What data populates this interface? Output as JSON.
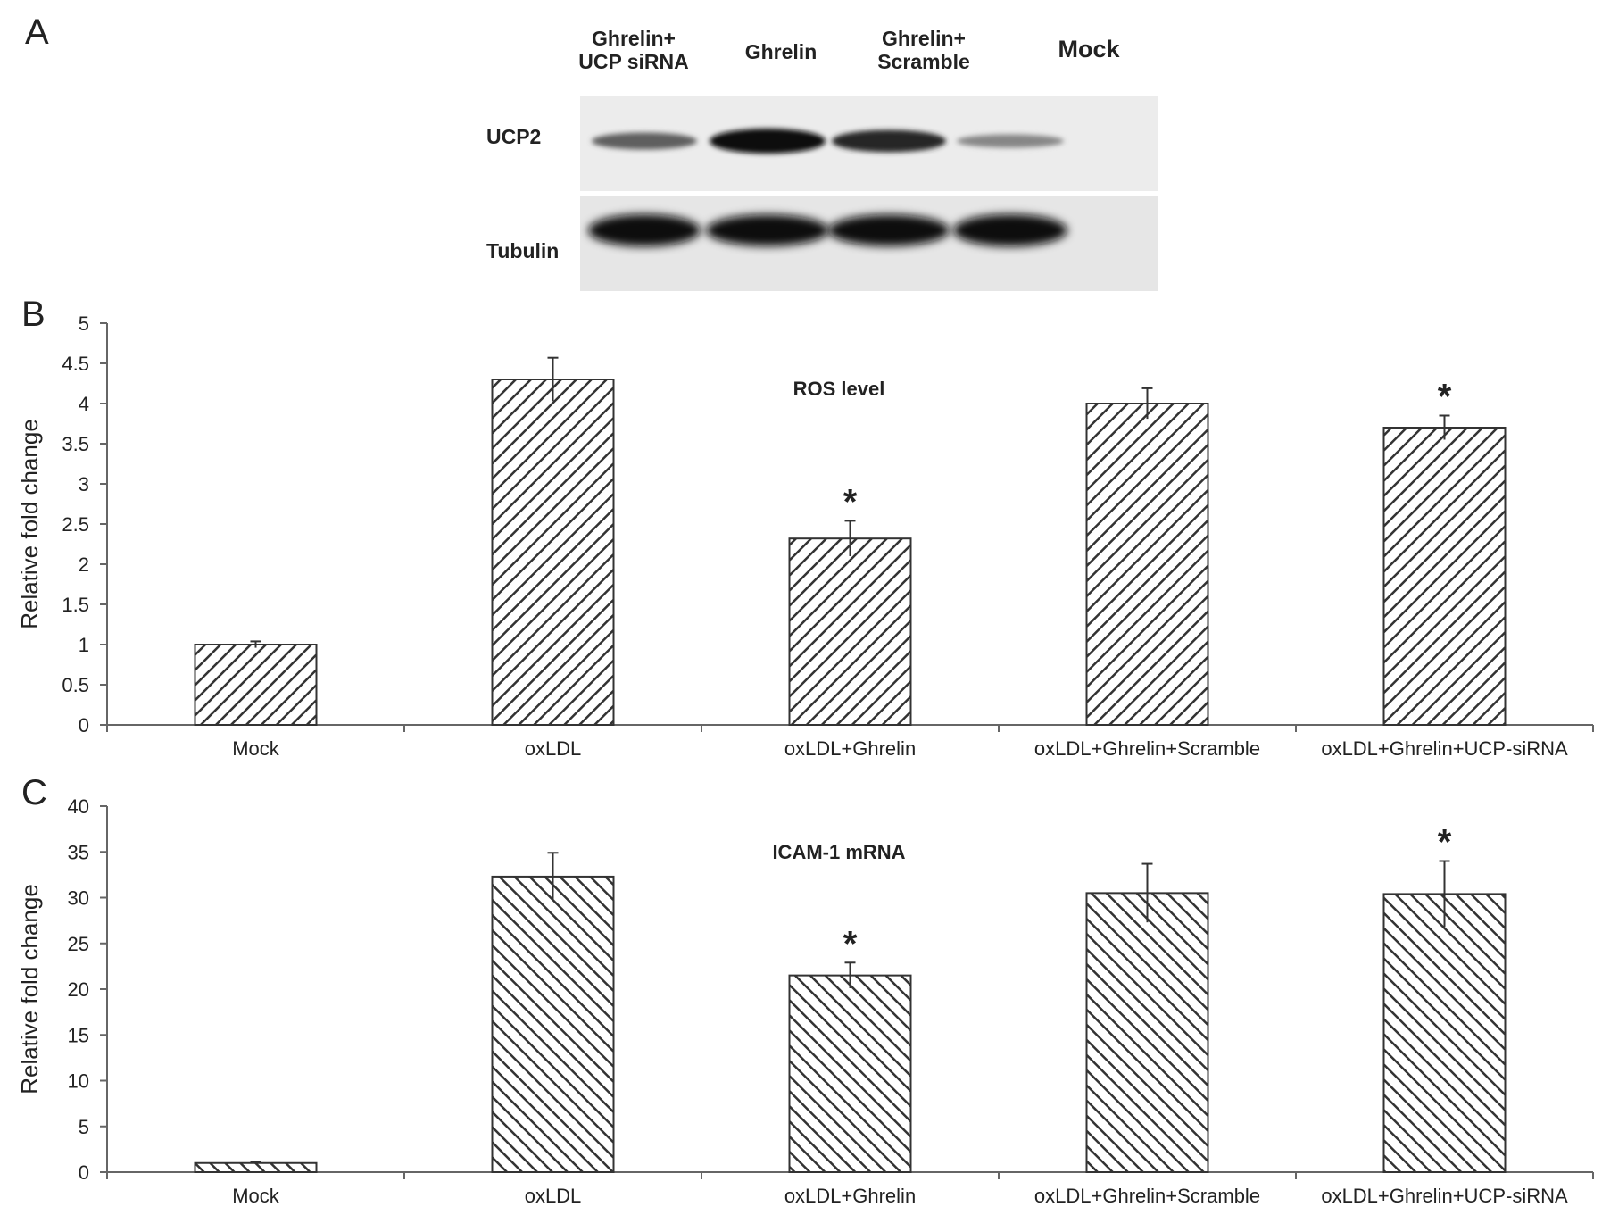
{
  "figure": {
    "panel_labels": [
      "A",
      "B",
      "C"
    ],
    "western_blot": {
      "lanes": [
        "Ghrelin+\nUCP siRNA",
        "Ghrelin",
        "Ghrelin+\nScramble",
        "Mock"
      ],
      "rows": [
        "UCP2",
        "Tubulin"
      ],
      "ucp2_relative_intensity": [
        0.55,
        1.0,
        0.85,
        0.35
      ],
      "tubulin_relative_intensity": [
        1.0,
        0.95,
        0.95,
        1.0
      ]
    },
    "colors": {
      "bar_hatch": "#333333",
      "bar_background": "#ffffff",
      "axis": "#666666"
    }
  },
  "chart_data": [
    {
      "type": "bar",
      "title": "ROS level",
      "ylabel": "Relative fold change",
      "xlabel": "",
      "categories": [
        "Mock",
        "oxLDL",
        "oxLDL+Ghrelin",
        "oxLDL+Ghrelin+Scramble",
        "oxLDL+Ghrelin+UCP-siRNA"
      ],
      "values": [
        1.0,
        4.3,
        2.32,
        4.0,
        3.7
      ],
      "errors": [
        0.04,
        0.27,
        0.22,
        0.19,
        0.15
      ],
      "significance": [
        "",
        "",
        "*",
        "",
        "*"
      ],
      "ylim": [
        0,
        5
      ],
      "yticks": [
        "0",
        "0.5",
        "1",
        "1.5",
        "2",
        "2.5",
        "3",
        "3.5",
        "4",
        "4.5",
        "5"
      ],
      "grid": false,
      "legend": "none"
    },
    {
      "type": "bar",
      "title": "ICAM-1 mRNA",
      "ylabel": "Relative fold change",
      "xlabel": "",
      "categories": [
        "Mock",
        "oxLDL",
        "oxLDL+Ghrelin",
        "oxLDL+Ghrelin+Scramble",
        "oxLDL+Ghrelin+UCP-siRNA"
      ],
      "values": [
        1.0,
        32.3,
        21.5,
        30.5,
        30.4
      ],
      "errors": [
        0.1,
        2.6,
        1.4,
        3.2,
        3.6
      ],
      "significance": [
        "",
        "",
        "*",
        "",
        "*"
      ],
      "ylim": [
        0,
        40
      ],
      "yticks": [
        "0",
        "5",
        "10",
        "15",
        "20",
        "25",
        "30",
        "35",
        "40"
      ],
      "grid": false,
      "legend": "none"
    }
  ]
}
